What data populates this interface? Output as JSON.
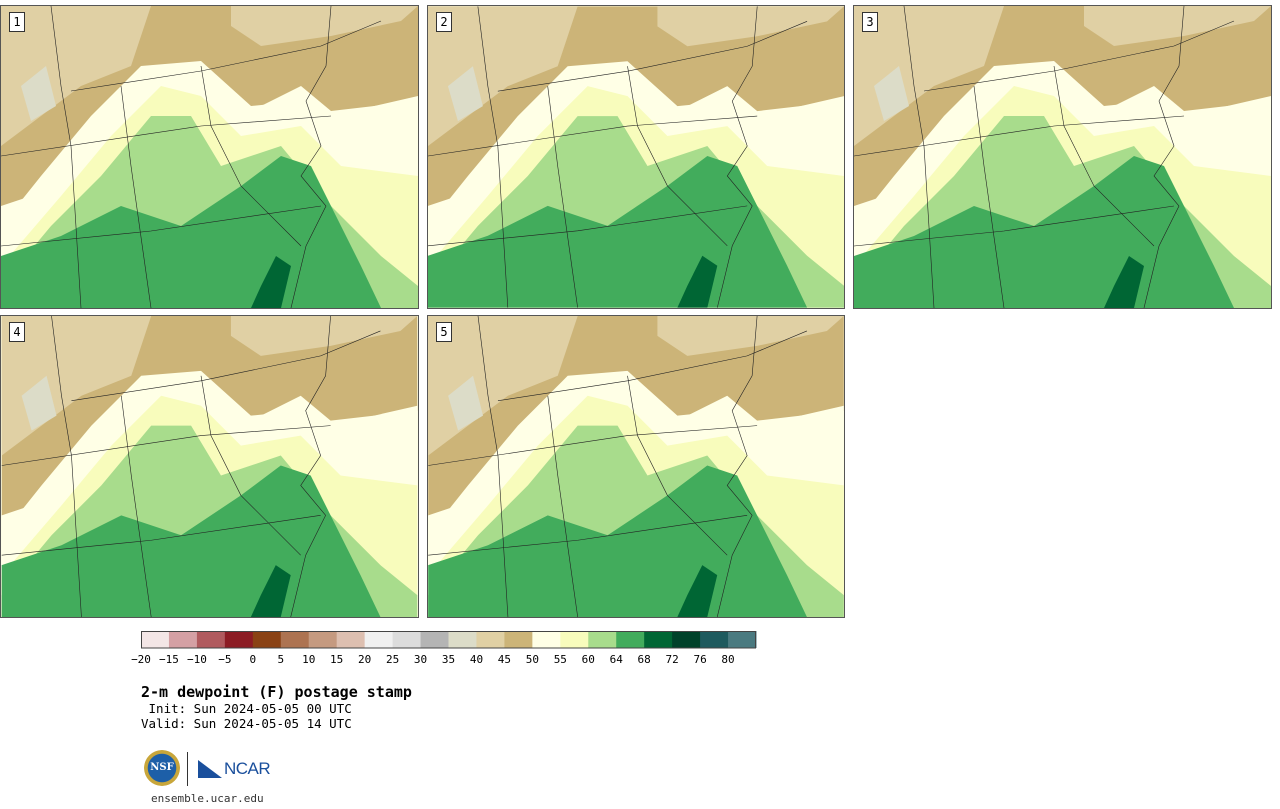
{
  "panels": [
    {
      "label": "1"
    },
    {
      "label": "2"
    },
    {
      "label": "3"
    },
    {
      "label": "4"
    },
    {
      "label": "5"
    }
  ],
  "colorbar": {
    "ticks": [
      "−20",
      "−15",
      "−10",
      "−5",
      "0",
      "5",
      "10",
      "15",
      "20",
      "25",
      "30",
      "35",
      "40",
      "45",
      "50",
      "55",
      "60",
      "64",
      "68",
      "72",
      "76",
      "80"
    ],
    "colors": [
      "#f3e6e6",
      "#d4a0a4",
      "#b05a5e",
      "#8c1c24",
      "#8a4214",
      "#ad7351",
      "#c59a80",
      "#ddbfb0",
      "#f0f0f0",
      "#dcdcdc",
      "#b4b4b4",
      "#dcdcc8",
      "#e0d0a4",
      "#ccb478",
      "#ffffe6",
      "#f8fcbc",
      "#a8dc8c",
      "#42ac5c",
      "#006634",
      "#00422a",
      "#1e5a5e",
      "#4a7a80"
    ]
  },
  "title": "2-m dewpoint (F) postage stamp",
  "init": " Init: Sun 2024-05-05 00 UTC",
  "valid": "Valid: Sun 2024-05-05 14 UTC",
  "logos": {
    "nsf": "NSF",
    "ncar": "NCAR"
  },
  "site": "ensemble.ucar.edu"
}
